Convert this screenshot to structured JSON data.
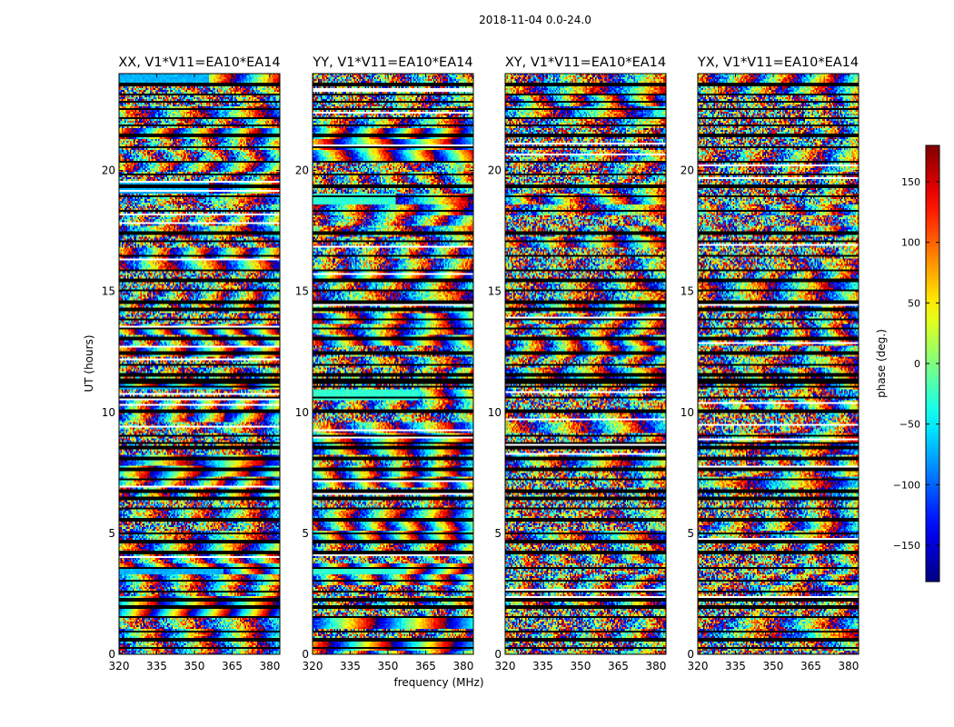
{
  "suptitle": "2018-11-04 0.0-24.0",
  "chart_data": {
    "type": "heatmap",
    "ylabel": "UT (hours)",
    "xlabel": "frequency (MHz)",
    "xlim": [
      320,
      384
    ],
    "ylim": [
      0,
      24
    ],
    "xticks": [
      320,
      335,
      350,
      365,
      380
    ],
    "yticks": [
      0,
      5,
      10,
      15,
      20
    ],
    "colormap": "jet",
    "panels": [
      {
        "title": "XX, V1*V11=EA10*EA14",
        "polarization": "XX"
      },
      {
        "title": "YY, V1*V11=EA10*EA14",
        "polarization": "YY"
      },
      {
        "title": "XY, V1*V11=EA10*EA14",
        "polarization": "XY"
      },
      {
        "title": "YX, V1*V11=EA10*EA14",
        "polarization": "YX"
      }
    ],
    "colorbar": {
      "label": "phase (deg.)",
      "range": [
        -180,
        180
      ],
      "ticks": [
        -150,
        -100,
        -50,
        0,
        50,
        100,
        150
      ],
      "tick_labels": [
        "−150",
        "−100",
        "−50",
        "0",
        "50",
        "100",
        "150"
      ]
    },
    "flagged_ut_hours": [
      0.25,
      0.6,
      0.95,
      1.55,
      1.95,
      2.25,
      2.6,
      3.05,
      3.55,
      4.2,
      4.65,
      5.0,
      5.55,
      6.05,
      6.45,
      6.75,
      7.25,
      7.65,
      8.1,
      8.55,
      8.75,
      9.05,
      10.05,
      10.6,
      11.05,
      11.25,
      11.35,
      11.55,
      11.95,
      12.45,
      13.05,
      13.45,
      13.85,
      14.25,
      14.55,
      15.05,
      15.45,
      15.85,
      16.45,
      17.05,
      17.4,
      18.35,
      18.95,
      19.35,
      19.85,
      20.35,
      20.95,
      21.45,
      21.85,
      22.15,
      22.55,
      22.85,
      23.15,
      23.55
    ]
  }
}
